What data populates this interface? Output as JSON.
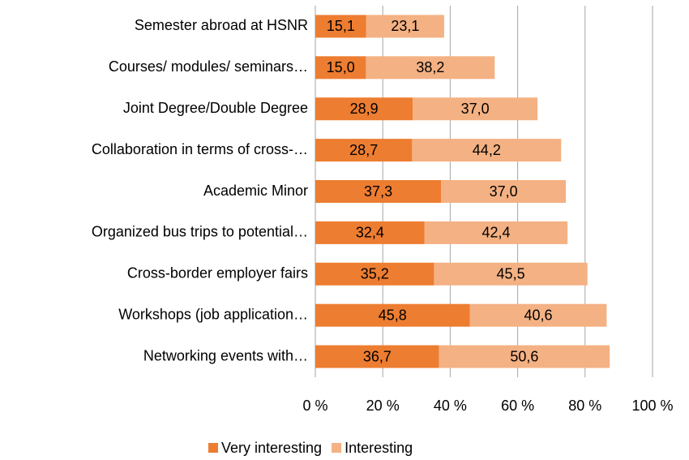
{
  "chart_data": {
    "type": "bar",
    "orientation": "horizontal",
    "stacked": true,
    "categories": [
      "Semester abroad at HSNR",
      "Courses/ modules/ seminars…",
      "Joint Degree/Double Degree",
      "Collaboration in terms of cross-…",
      "Academic Minor",
      "Organized bus trips to potential…",
      "Cross-border employer fairs",
      "Workshops (job application…",
      "Networking events with…"
    ],
    "series": [
      {
        "name": "Very interesting",
        "color": "#ED7D31",
        "label_color": "#ffffff",
        "values": [
          15.1,
          15.0,
          28.9,
          28.7,
          37.3,
          32.4,
          35.2,
          45.8,
          36.7
        ],
        "value_labels": [
          "15,1",
          "15,0",
          "28,9",
          "28,7",
          "37,3",
          "32,4",
          "35,2",
          "45,8",
          "36,7"
        ]
      },
      {
        "name": "Interesting",
        "color": "#F4B183",
        "label_color": "#000000",
        "values": [
          23.1,
          38.2,
          37.0,
          44.2,
          37.0,
          42.4,
          45.5,
          40.6,
          50.6
        ],
        "value_labels": [
          "23,1",
          "38,2",
          "37,0",
          "44,2",
          "37,0",
          "42,4",
          "45,5",
          "40,6",
          "50,6"
        ]
      }
    ],
    "xlim": [
      0,
      100
    ],
    "xticks": [
      {
        "value": 0,
        "label": "0 %"
      },
      {
        "value": 20,
        "label": "20 %"
      },
      {
        "value": 40,
        "label": "40 %"
      },
      {
        "value": 60,
        "label": "60 %"
      },
      {
        "value": 80,
        "label": "80 %"
      },
      {
        "value": 100,
        "label": "100 %"
      }
    ],
    "grid": true,
    "legend": "bottom"
  }
}
